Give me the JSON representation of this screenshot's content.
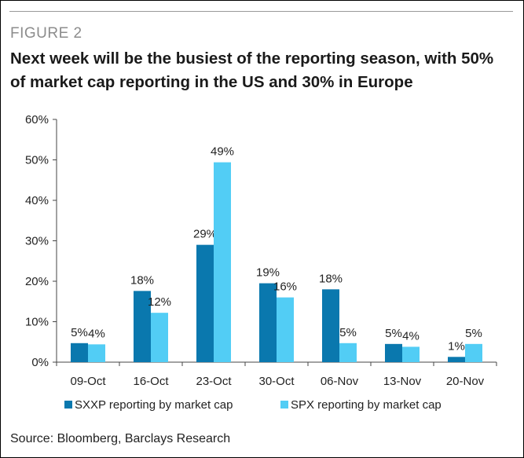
{
  "header": {
    "figure_label": "FIGURE 2",
    "title": "Next week will be the busiest of the reporting season, with 50% of market cap reporting in the US and 30% in Europe"
  },
  "footer": {
    "source": "Source: Bloomberg, Barclays Research"
  },
  "colors": {
    "SXXP": "#0a78ae",
    "SPX": "#52cdf5",
    "axis": "#444444"
  },
  "chart_data": {
    "type": "bar",
    "categories": [
      "09-Oct",
      "16-Oct",
      "23-Oct",
      "30-Oct",
      "06-Nov",
      "13-Nov",
      "20-Nov"
    ],
    "series": [
      {
        "name": "SXXP reporting by market cap",
        "values": [
          4.7,
          17.6,
          29,
          19.5,
          18,
          4.5,
          1.3
        ],
        "labels": [
          "5%",
          "18%",
          "29%",
          "19%",
          "18%",
          "5%",
          "1%"
        ]
      },
      {
        "name": "SPX reporting by market cap",
        "values": [
          4.4,
          12.2,
          49.4,
          16,
          4.7,
          3.8,
          4.5
        ],
        "labels": [
          "4%",
          "12%",
          "49%",
          "16%",
          "5%",
          "4%",
          "5%"
        ]
      }
    ],
    "ylim": [
      0,
      60
    ],
    "yticks": [
      0,
      10,
      20,
      30,
      40,
      50,
      60
    ],
    "ytick_labels": [
      "0%",
      "10%",
      "20%",
      "30%",
      "40%",
      "50%",
      "60%"
    ],
    "xlabel": "",
    "ylabel": "",
    "grid": false,
    "legend_position": "bottom"
  }
}
